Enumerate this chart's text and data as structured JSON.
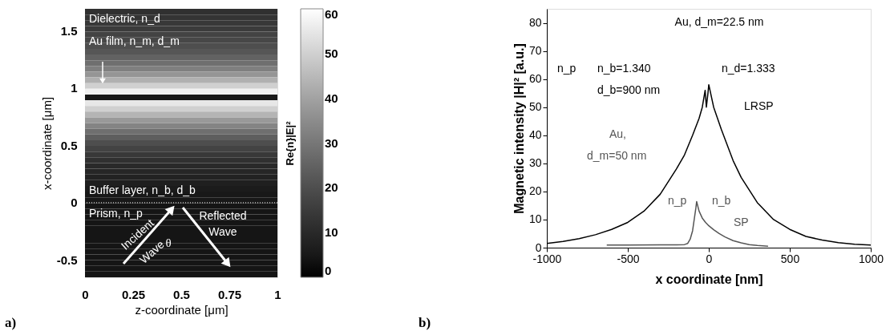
{
  "chart_data": [
    {
      "type": "heatmap",
      "xlabel": "z-coordinate [μm]",
      "ylabel": "x-coordinate [μm]",
      "clabel": "Re{n}|E|²",
      "xlim": [
        0,
        1
      ],
      "xticks": [
        0,
        0.25,
        0.5,
        0.75,
        1
      ],
      "ylim": [
        -0.65,
        1.69
      ],
      "yticks": [
        -0.5,
        0,
        0.5,
        1,
        1.5
      ],
      "cells": [
        [
          12
        ],
        [
          13
        ],
        [
          14
        ],
        [
          15
        ],
        [
          17
        ],
        [
          18
        ],
        [
          20
        ],
        [
          22
        ],
        [
          25
        ],
        [
          28
        ],
        [
          32
        ],
        [
          37
        ],
        [
          43
        ],
        [
          50
        ],
        [
          57
        ],
        [
          5
        ],
        [
          55
        ],
        [
          50
        ],
        [
          44
        ],
        [
          38
        ],
        [
          33
        ],
        [
          28
        ],
        [
          24
        ],
        [
          20
        ],
        [
          17
        ],
        [
          14
        ],
        [
          12
        ],
        [
          10
        ],
        [
          9
        ],
        [
          8
        ],
        [
          7
        ],
        [
          6
        ],
        [
          5
        ],
        [
          5
        ],
        [
          4
        ],
        [
          4
        ],
        [
          4
        ],
        [
          4
        ],
        [
          4
        ],
        [
          4
        ],
        [
          4
        ],
        [
          4
        ],
        [
          4
        ],
        [
          4
        ],
        [
          4
        ],
        [
          4
        ],
        [
          4
        ]
      ],
      "clim": [
        0,
        60
      ],
      "cticks": [
        0,
        10,
        20,
        30,
        40,
        50,
        60
      ],
      "ref_lines": [
        {
          "axis": "y",
          "value": 0,
          "color": "#ffffff",
          "line_style": "dotted"
        }
      ],
      "grid": false,
      "annotations": [
        "Dielectric, n_d",
        "Au film, n_m, d_m",
        "Buffer layer, n_b, d_b",
        "Prism, n_p",
        "Incident",
        "Wave",
        "Reflected",
        "Wave",
        "θ",
        "a)"
      ]
    },
    {
      "type": "line",
      "xlabel": "x coordinate [nm]",
      "ylabel": "Magnetic intensity |H|²  [a.u.]",
      "xlim": [
        -1000,
        1000
      ],
      "xticks": [
        -1000,
        -500,
        0,
        500,
        1000
      ],
      "ylim": [
        0,
        85
      ],
      "yticks": [
        0,
        10,
        20,
        30,
        40,
        50,
        60,
        70,
        80
      ],
      "grid": false,
      "marker": "none",
      "line_style": "solid",
      "series": [
        {
          "color": "#000000",
          "x": [
            -1000,
            -900,
            -800,
            -700,
            -600,
            -500,
            -400,
            -300,
            -200,
            -150,
            -100,
            -60,
            -40,
            -22.5,
            -15,
            -5,
            0,
            30,
            78,
            150,
            200,
            300,
            400,
            500,
            600,
            700,
            800,
            900,
            1000
          ],
          "values": [
            1.5,
            2.2,
            3.2,
            4.6,
            6.5,
            9,
            13,
            19,
            28,
            33,
            40,
            46,
            50,
            56,
            50,
            55,
            58,
            50,
            42,
            31,
            25,
            16,
            10,
            6.5,
            4,
            2.7,
            1.8,
            1.2,
            0.9
          ]
        },
        {
          "color": "#555555",
          "x": [
            -630,
            -500,
            -300,
            -200,
            -150,
            -130,
            -115,
            -100,
            -90,
            -80,
            -75,
            -60,
            -40,
            -20,
            0,
            30,
            64,
            100,
            150,
            200,
            250,
            300,
            366
          ],
          "values": [
            0.9,
            0.9,
            1,
            1,
            1.1,
            1.5,
            3,
            6,
            10,
            14,
            16.4,
            13,
            10.5,
            9,
            7.8,
            6.4,
            5,
            3.8,
            2.5,
            1.7,
            1.1,
            0.8,
            0.5
          ]
        }
      ],
      "annotations": [
        "Au, d_m=22.5 nm",
        "n_p",
        "n_b=1.340",
        "d_b=900 nm",
        "n_d=1.333",
        "LRSP",
        "Au,",
        "d_m=50 nm",
        "n_p",
        "n_b",
        "SP",
        "b)"
      ]
    }
  ]
}
